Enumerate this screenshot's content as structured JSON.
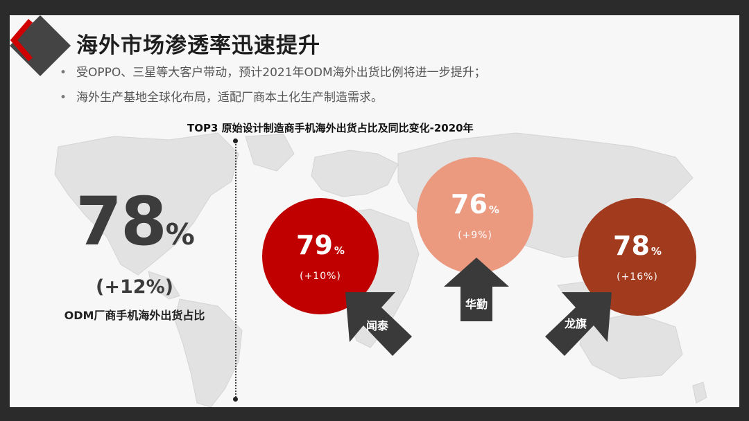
{
  "slide": {
    "title": "海外市场渗透率迅速提升",
    "bullets": [
      "受OPPO、三星等大客户带动，预计2021年ODM海外出货比例将进一步提升；",
      "海外生产基地全球化布局，适配厂商本土化生产制造需求。"
    ],
    "bullet_glyph": "•"
  },
  "summary": {
    "value": "78",
    "unit": "%",
    "change": "(+12%)",
    "label": "ODM厂商手机海外出货占比"
  },
  "chart_data": {
    "type": "bubble",
    "title": "TOP3 原始设计制造商手机海外出货占比及同比变化-2020年",
    "unit": "%",
    "companies": [
      {
        "name": "闻泰",
        "value": 79,
        "change": "(+10%)",
        "color": "#c00000"
      },
      {
        "name": "华勤",
        "value": 76,
        "change": "(+9%)",
        "color": "#eb9a80"
      },
      {
        "name": "龙旗",
        "value": 78,
        "change": "(+16%)",
        "color": "#a23a1e"
      }
    ]
  },
  "colors": {
    "background": "#f7f7f7",
    "frame": "#2b2b2b",
    "accent": "#c00000",
    "arrow": "#3a3a3a"
  },
  "icons": {
    "logo": "diamond-logo-icon",
    "background": "world-map"
  }
}
